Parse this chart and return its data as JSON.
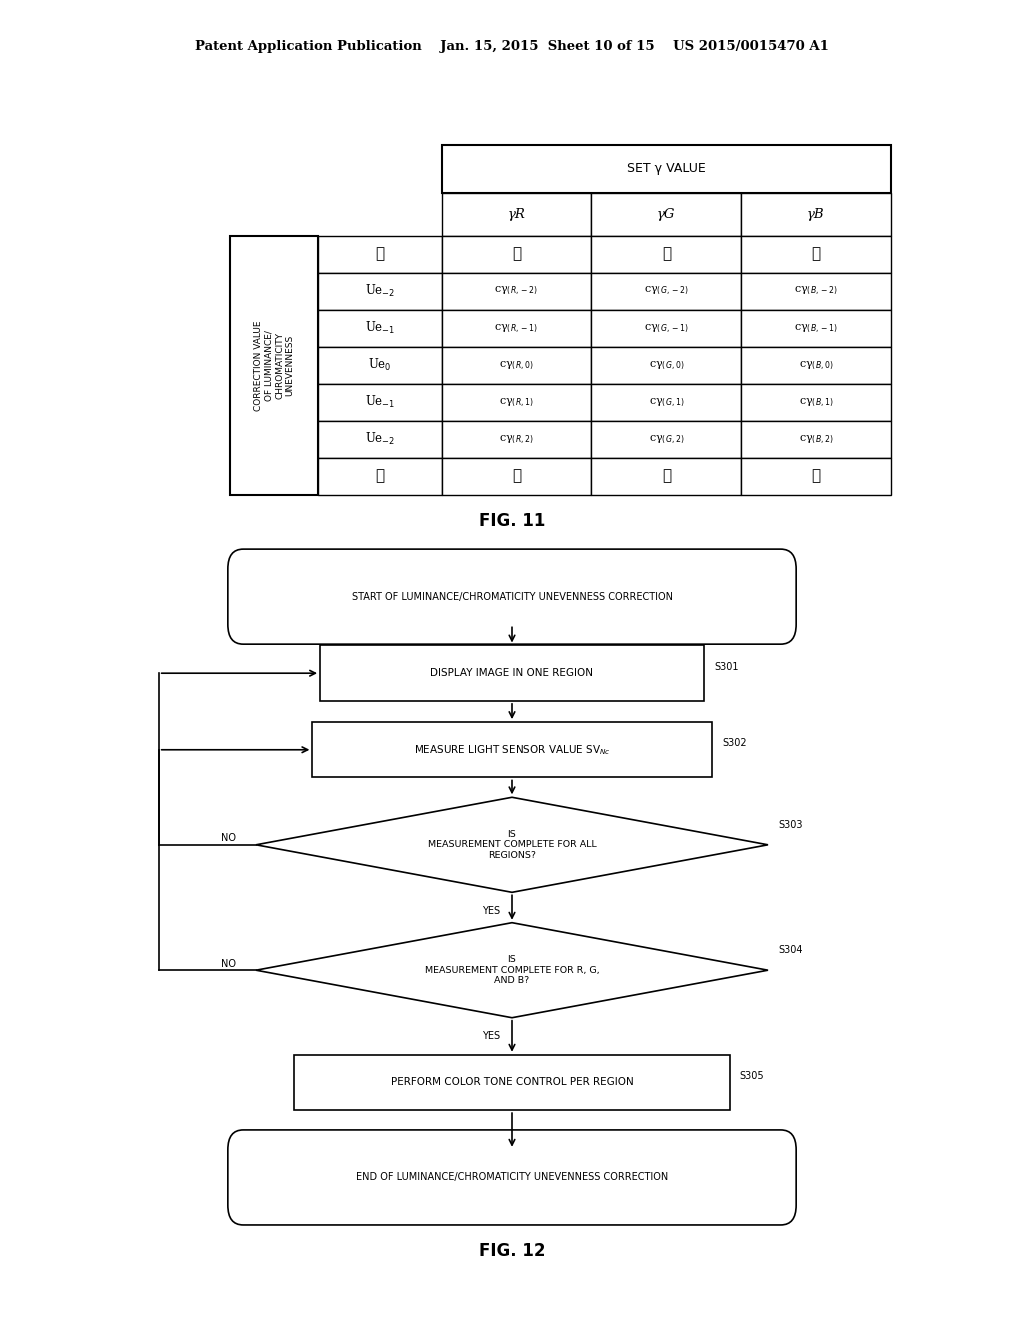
{
  "header_text": "Patent Application Publication    Jan. 15, 2015  Sheet 10 of 15    US 2015/0015470 A1",
  "fig11_label": "FIG. 11",
  "fig12_label": "FIG. 12",
  "background": "#ffffff",
  "table": {
    "set_gamma_header": "SET gamma VALUE",
    "col_headers": [
      "gamma_R",
      "gamma_G",
      "gamma_B"
    ],
    "side_label": "CORRECTION VALUE\nOF LUMINANCE/\nCHROMATICITY\nUNEVENNESS",
    "row_labels": [
      "Ue-2_top",
      "Ue-1_top",
      "Ue0",
      "Ue-1_bot",
      "Ue-2_bot"
    ]
  },
  "flowchart": {
    "start_text": "START OF LUMINANCE/CHROMATICITY UNEVENNESS CORRECTION",
    "end_text": "END OF LUMINANCE/CHROMATICITY UNEVENNESS CORRECTION",
    "s301_text": "DISPLAY IMAGE IN ONE REGION",
    "s302_text": "MEASURE LIGHT SENSOR VALUE SV",
    "s303_text": "IS\nMEASUREMENT COMPLETE FOR ALL\nREGIONS?",
    "s304_text": "IS\nMEASUREMENT COMPLETE FOR R, G,\nAND B?",
    "s305_text": "PERFORM COLOR TONE CONTROL PER REGION"
  }
}
